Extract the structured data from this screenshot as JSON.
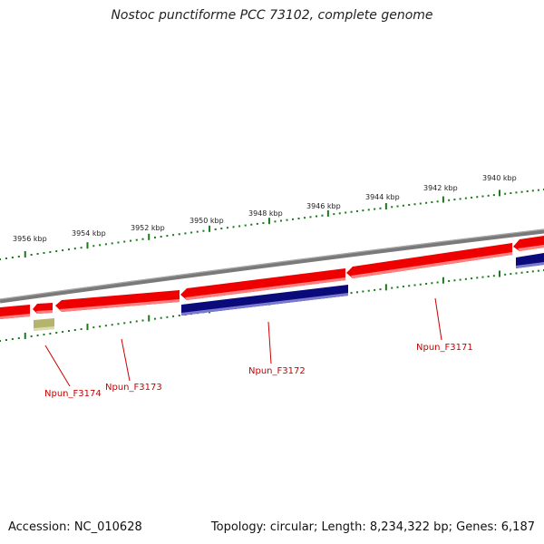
{
  "title": "Nostoc punctiforme PCC 73102, complete genome",
  "footer": {
    "accession": "Accession: NC_010628",
    "summary": "Topology: circular; Length: 8,234,322 bp; Genes: 6,187"
  },
  "scale": {
    "unit": "kbp",
    "labels": [
      "3956 kbp",
      "3954 kbp",
      "3952 kbp",
      "3950 kbp",
      "3948 kbp",
      "3946 kbp",
      "3944 kbp",
      "3942 kbp",
      "3940 kbp"
    ]
  },
  "genes": [
    {
      "label": "Npun_F3174",
      "strand": "minus",
      "color": "#b5b46e"
    },
    {
      "label": "Npun_F3173",
      "strand": "minus",
      "color": "#ee0000"
    },
    {
      "label": "Npun_F3172",
      "strand": "plus",
      "color": "#0a0a7a"
    },
    {
      "label": "Npun_F3171",
      "strand": "minus",
      "color": "#ee0000"
    }
  ],
  "colors": {
    "backbone": "#808080",
    "minus_strand": "#ee0000",
    "plus_strand": "#0a0a7a",
    "scale": "#1a7a1a"
  }
}
